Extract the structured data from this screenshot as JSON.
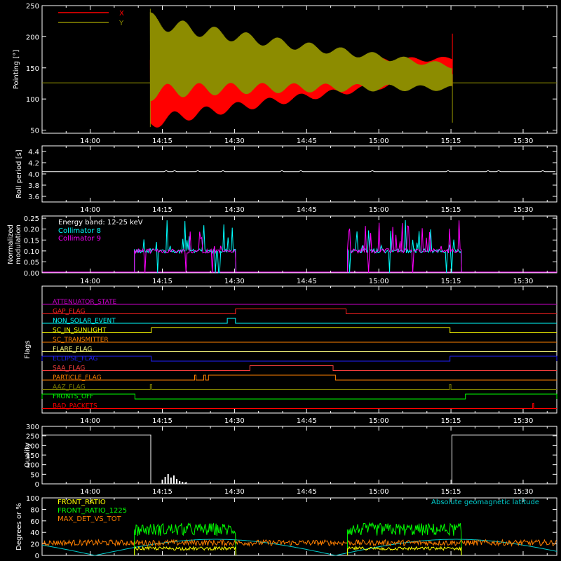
{
  "colors": {
    "background": "#000000",
    "axes": "#ffffff",
    "x": "#ff0000",
    "y": "#8c8c00",
    "collimator8": "#00ffff",
    "collimator9": "#ff00ff",
    "front_ratio": "#ffff00",
    "front_ratio_1225": "#00ff00",
    "max_det_vs_tot": "#ff7f00",
    "geomag": "#00cccc"
  },
  "time_axis": {
    "start_minutes": 830,
    "end_minutes": 937,
    "tick_labels": [
      "14:00",
      "14:15",
      "14:30",
      "14:45",
      "15:00",
      "15:15",
      "15:30"
    ],
    "tick_minutes": [
      840,
      855,
      870,
      885,
      900,
      915,
      930
    ]
  },
  "chart_data": [
    {
      "type": "line",
      "name": "pointing",
      "ylabel": "Pointing [°]",
      "ylim": [
        45,
        250
      ],
      "yticks": [
        50,
        100,
        150,
        200,
        250
      ],
      "legend": [
        {
          "label": "X",
          "color": "#ff0000"
        },
        {
          "label": "Y",
          "color": "#8c8c00"
        }
      ],
      "legend_position": "top-left",
      "baseline_value": 126,
      "oscillation_start": 852.5,
      "oscillation_end": 915.3,
      "series": [
        {
          "name": "X",
          "center_start": 112,
          "center_end": 150,
          "amp_start": 62,
          "amp_end": 18
        },
        {
          "name": "Y",
          "center_start": 168,
          "center_end": 135,
          "amp_start": 72,
          "amp_end": 22
        }
      ]
    },
    {
      "type": "line",
      "name": "roll_period",
      "ylabel": "Roll period [s]",
      "ylim": [
        3.5,
        4.5
      ],
      "yticks": [
        3.6,
        3.8,
        4.0,
        4.2,
        4.4
      ],
      "value": 4.04,
      "x_range": [
        830,
        937
      ]
    },
    {
      "type": "line",
      "name": "modulation",
      "ylabel": "Normalized modulation",
      "ylim": [
        0,
        0.26
      ],
      "yticks": [
        0.0,
        0.05,
        0.1,
        0.15,
        0.2,
        0.25
      ],
      "annotation": "Energy band: 12-25 keV",
      "legend": [
        {
          "label": "Collimator 8",
          "color": "#00ffff"
        },
        {
          "label": "Collimator 9",
          "color": "#ff00ff"
        }
      ],
      "legend_position": "top-left",
      "active_intervals": [
        [
          849.2,
          870.3
        ],
        [
          893.5,
          917.2
        ]
      ],
      "active_level": 0.1
    },
    {
      "type": "line",
      "name": "flags",
      "ylabel": "Flags",
      "rows": [
        {
          "label": "ATTENUATOR_STATE",
          "color": "#cc00cc",
          "segments": []
        },
        {
          "label": "GAP_FLAG",
          "color": "#ff2020",
          "segments": [
            [
              870.2,
              893.2
            ]
          ]
        },
        {
          "label": "NON_SOLAR_EVENT",
          "color": "#00ffff",
          "segments": [
            [
              868.5,
              870.2
            ]
          ]
        },
        {
          "label": "SC_IN_SUNLIGHT",
          "color": "#ffff00",
          "segments": [
            [
              852.7,
              914.8
            ]
          ]
        },
        {
          "label": "SC_TRANSMITTER",
          "color": "#ff8000",
          "segments": []
        },
        {
          "label": "FLARE_FLAG",
          "color": "#ffff80",
          "segments": []
        },
        {
          "label": "ECLIPSE_FLAG",
          "color": "#2020ff",
          "segments": [
            [
              830,
              852.7
            ],
            [
              914.8,
              937
            ]
          ]
        },
        {
          "label": "SAA_FLAG",
          "color": "#ff4040",
          "segments": [
            [
              873.2,
              890.5
            ]
          ]
        },
        {
          "label": "PARTICLE_FLAG",
          "color": "#ff8000",
          "segments": [
            [
              861.7,
              862.0
            ],
            [
              863.6,
              864.0
            ],
            [
              864.6,
              891.0
            ]
          ]
        },
        {
          "label": "AAZ_FLAG",
          "color": "#808000",
          "segments": [
            [
              852.5,
              852.8
            ],
            [
              914.7,
              915.0
            ]
          ]
        },
        {
          "label": "FRONTS_OFF",
          "color": "#00ff00",
          "segments": [
            [
              830,
              849.3
            ],
            [
              918.0,
              937
            ]
          ]
        },
        {
          "label": "BAD_PACKETS",
          "color": "#ff0000",
          "segments": [
            [
              932.0,
              932.2
            ]
          ]
        }
      ]
    },
    {
      "type": "line",
      "name": "quality",
      "ylabel": "Quality",
      "ylim": [
        0,
        300
      ],
      "yticks": [
        0,
        50,
        100,
        150,
        200,
        250,
        300
      ],
      "high_value": 255,
      "high_intervals": [
        [
          830,
          852.6
        ],
        [
          915.2,
          937
        ]
      ]
    },
    {
      "type": "line",
      "name": "ratios",
      "ylabel": "Degrees or %",
      "ylim": [
        0,
        100
      ],
      "yticks": [
        0,
        20,
        40,
        60,
        80,
        100
      ],
      "legend": [
        {
          "label": "FRONT_RATIO",
          "color": "#ffff00"
        },
        {
          "label": "FRONT_RATIO_1225",
          "color": "#00ff00"
        },
        {
          "label": "MAX_DET_VS_TOT",
          "color": "#ff7f00"
        }
      ],
      "annotation": "Absolute geomagnetic latitude",
      "legend_position": "top-left",
      "active_intervals": [
        [
          849.2,
          870.3
        ],
        [
          893.5,
          917.2
        ]
      ],
      "front_ratio_1225_level": 45,
      "front_ratio_level": 12,
      "max_det_level": 22,
      "geomag_min_minutes": [
        841,
        891,
        940
      ],
      "geomag_max": 28
    }
  ]
}
